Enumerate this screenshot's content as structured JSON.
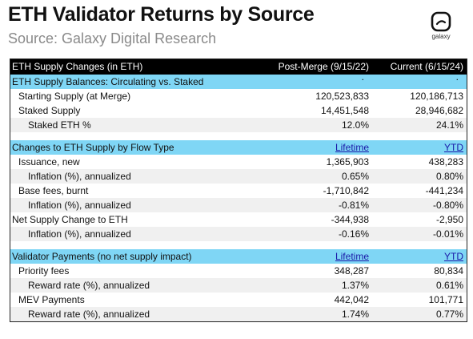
{
  "header": {
    "title": "ETH Validator Returns by Source",
    "subtitle": "Source: Galaxy Digital Research",
    "logo_text": "galaxy"
  },
  "table": {
    "header": {
      "label": "ETH Supply Changes (in ETH)",
      "col1": "Post-Merge (9/15/22)",
      "col2": "Current (6/15/24)"
    },
    "sections": [
      {
        "title": "ETH Supply Balances: Circulating vs. Staked",
        "col1": "",
        "col2": "",
        "rows": [
          {
            "label": "Starting Supply (at Merge)",
            "v1": "120,523,833",
            "v2": "120,186,713"
          },
          {
            "label": "Staked Supply",
            "v1": "14,451,548",
            "v2": "28,946,682"
          },
          {
            "label": "Staked ETH %",
            "v1": "12.0%",
            "v2": "24.1%"
          }
        ]
      },
      {
        "title": "Changes to ETH Supply by Flow Type",
        "col1": "Lifetime",
        "col2": "YTD",
        "rows": [
          {
            "label": "Issuance, new",
            "v1": "1,365,903",
            "v2": "438,283"
          },
          {
            "label": "Inflation (%), annualized",
            "v1": "0.65%",
            "v2": "0.80%"
          },
          {
            "label": "Base fees, burnt",
            "v1": "-1,710,842",
            "v2": "-441,234"
          },
          {
            "label": "Inflation (%), annualized",
            "v1": "-0.81%",
            "v2": "-0.80%"
          },
          {
            "label": "Net Supply Change to ETH",
            "v1": "-344,938",
            "v2": "-2,950"
          },
          {
            "label": "Inflation (%), annualized",
            "v1": "-0.16%",
            "v2": "-0.01%"
          }
        ]
      },
      {
        "title": "Validator Payments (no net supply impact)",
        "col1": "Lifetime",
        "col2": "YTD",
        "rows": [
          {
            "label": "Priority fees",
            "v1": "348,287",
            "v2": "80,834"
          },
          {
            "label": "Reward rate (%), annualized",
            "v1": "1.37%",
            "v2": "0.61%"
          },
          {
            "label": "MEV Payments",
            "v1": "442,042",
            "v2": "101,771"
          },
          {
            "label": "Reward rate (%), annualized",
            "v1": "1.74%",
            "v2": "0.77%"
          }
        ]
      }
    ]
  }
}
